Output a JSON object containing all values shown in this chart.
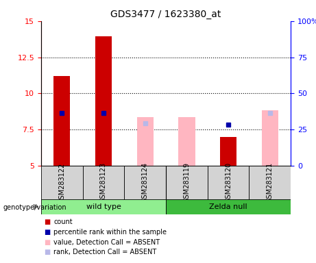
{
  "title": "GDS3477 / 1623380_at",
  "samples": [
    "GSM283122",
    "GSM283123",
    "GSM283124",
    "GSM283119",
    "GSM283120",
    "GSM283121"
  ],
  "groups": [
    "wild type",
    "wild type",
    "wild type",
    "Zelda null",
    "Zelda null",
    "Zelda null"
  ],
  "group_labels": [
    "wild type",
    "Zelda null"
  ],
  "ylim_left": [
    5,
    15
  ],
  "ylim_right": [
    0,
    100
  ],
  "yticks_left": [
    5,
    7.5,
    10,
    12.5,
    15
  ],
  "yticks_right": [
    0,
    25,
    50,
    75,
    100
  ],
  "red_bars": [
    11.2,
    13.95,
    null,
    null,
    7.0,
    null
  ],
  "blue_dots": [
    8.65,
    8.65,
    null,
    null,
    7.85,
    null
  ],
  "pink_bars": [
    null,
    null,
    8.35,
    8.35,
    null,
    8.85
  ],
  "lavender_dots": [
    null,
    null,
    7.95,
    null,
    null,
    8.65
  ],
  "red_color": "#cc0000",
  "blue_color": "#0000aa",
  "pink_color": "#ffb6c1",
  "lavender_color": "#b8b8e8",
  "sample_bg": "#d3d3d3",
  "green_light": "#90ee90",
  "green_dark": "#3dba3d",
  "plot_bg": "#ffffff",
  "legend_items": [
    {
      "label": "count",
      "color": "#cc0000"
    },
    {
      "label": "percentile rank within the sample",
      "color": "#0000aa"
    },
    {
      "label": "value, Detection Call = ABSENT",
      "color": "#ffb6c1"
    },
    {
      "label": "rank, Detection Call = ABSENT",
      "color": "#b8b8e8"
    }
  ],
  "genotype_label": "genotype/variation"
}
